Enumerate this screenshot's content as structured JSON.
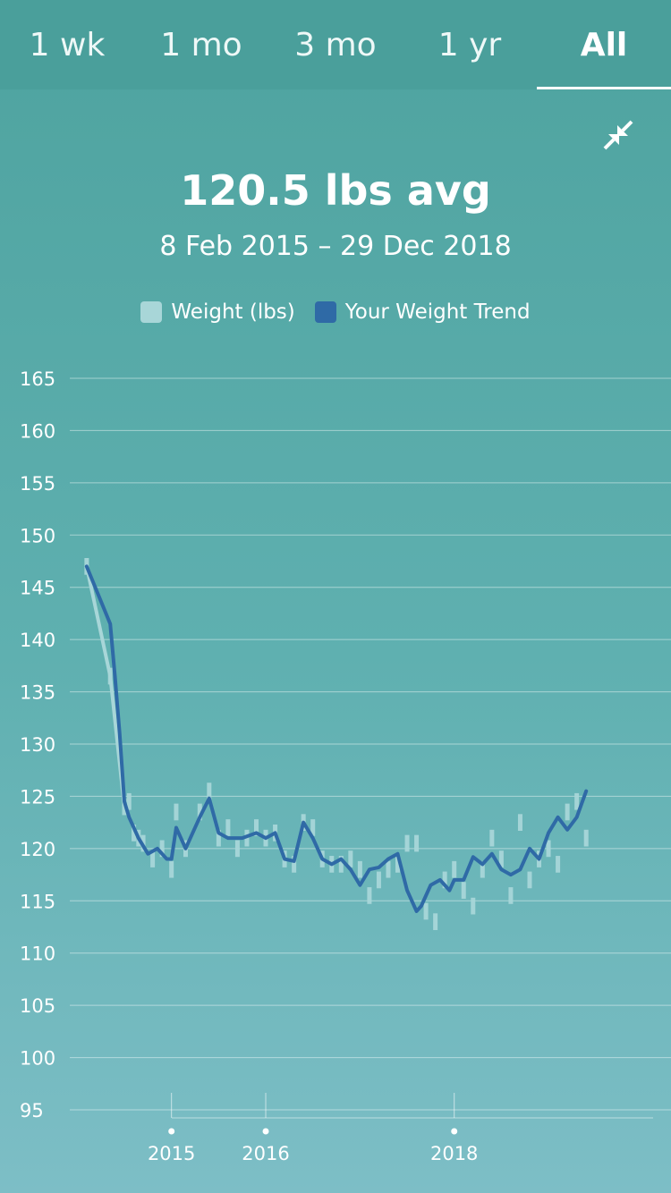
{
  "tabs": [
    {
      "label": "1 wk",
      "active": false
    },
    {
      "label": "1 mo",
      "active": false
    },
    {
      "label": "3 mo",
      "active": false
    },
    {
      "label": "1 yr",
      "active": false
    },
    {
      "label": "All",
      "active": true
    }
  ],
  "summary": {
    "average": "120.5 lbs avg",
    "range": "8 Feb 2015 – 29 Dec 2018"
  },
  "icons": {
    "collapse": "collapse-arrows-icon"
  },
  "colors": {
    "weight": "#a8d6d8",
    "trend": "#2f6aa6"
  },
  "chart_data": {
    "type": "line",
    "legend_position": "top-center",
    "grid": true,
    "ylim": [
      95,
      165
    ],
    "yticks": [
      95,
      100,
      105,
      110,
      115,
      120,
      125,
      130,
      135,
      140,
      145,
      150,
      155,
      160,
      165
    ],
    "xticks": [
      {
        "label": "2015",
        "x": 2015.0
      },
      {
        "label": "2016",
        "x": 2016.0
      },
      {
        "label": "2018",
        "x": 2018.0
      }
    ],
    "x_range": [
      2013.75,
      2020.3
    ],
    "series": [
      {
        "name": "Weight (lbs)",
        "kind": "bars",
        "x": [
          2014.1,
          2014.35,
          2014.5,
          2014.55,
          2014.6,
          2014.65,
          2014.7,
          2014.8,
          2014.9,
          2015.0,
          2015.05,
          2015.15,
          2015.3,
          2015.4,
          2015.5,
          2015.6,
          2015.7,
          2015.8,
          2015.9,
          2016.0,
          2016.1,
          2016.2,
          2016.3,
          2016.4,
          2016.5,
          2016.6,
          2016.7,
          2016.8,
          2016.9,
          2017.0,
          2017.1,
          2017.2,
          2017.3,
          2017.4,
          2017.5,
          2017.6,
          2017.7,
          2017.8,
          2017.9,
          2018.0,
          2018.1,
          2018.2,
          2018.3,
          2018.4,
          2018.5,
          2018.6,
          2018.7,
          2018.8,
          2018.9,
          2019.0,
          2019.1,
          2019.2,
          2019.3,
          2019.4
        ],
        "values": [
          147,
          136.5,
          124,
          124.5,
          121.5,
          121,
          120.5,
          119,
          120,
          118,
          123.5,
          120,
          123.5,
          125.5,
          121,
          122,
          120,
          121,
          122,
          121,
          121.5,
          119,
          118.5,
          122.5,
          122,
          119,
          118.5,
          118.5,
          119,
          118,
          115.5,
          117,
          118,
          118.5,
          120.5,
          120.5,
          114,
          113,
          117,
          118,
          116,
          114.5,
          118,
          121,
          119,
          115.5,
          122.5,
          117,
          119,
          120,
          118.5,
          123.5,
          124.5,
          121
        ]
      },
      {
        "name": "Your Weight Trend",
        "kind": "line",
        "x": [
          2014.1,
          2014.35,
          2014.4,
          2014.45,
          2014.5,
          2014.55,
          2014.65,
          2014.75,
          2014.85,
          2014.95,
          2015.0,
          2015.05,
          2015.15,
          2015.3,
          2015.4,
          2015.5,
          2015.6,
          2015.75,
          2015.9,
          2016.0,
          2016.1,
          2016.2,
          2016.3,
          2016.4,
          2016.5,
          2016.6,
          2016.7,
          2016.8,
          2016.9,
          2017.0,
          2017.1,
          2017.2,
          2017.3,
          2017.4,
          2017.5,
          2017.6,
          2017.65,
          2017.75,
          2017.85,
          2017.95,
          2018.0,
          2018.1,
          2018.2,
          2018.3,
          2018.4,
          2018.5,
          2018.6,
          2018.7,
          2018.8,
          2018.9,
          2019.0,
          2019.1,
          2019.2,
          2019.3,
          2019.4
        ],
        "values": [
          147,
          141.5,
          136.5,
          131,
          124.5,
          123,
          121,
          119.5,
          120,
          119,
          119,
          122,
          120,
          123,
          124.8,
          121.5,
          121,
          121,
          121.5,
          121,
          121.5,
          119,
          118.8,
          122.5,
          121,
          119,
          118.5,
          119,
          118,
          116.5,
          118,
          118.2,
          119,
          119.5,
          116,
          114,
          114.5,
          116.5,
          117,
          116,
          117,
          117,
          119.2,
          118.5,
          119.5,
          118,
          117.5,
          118,
          120,
          119,
          121.5,
          123,
          121.8,
          123,
          125.5
        ]
      }
    ]
  }
}
